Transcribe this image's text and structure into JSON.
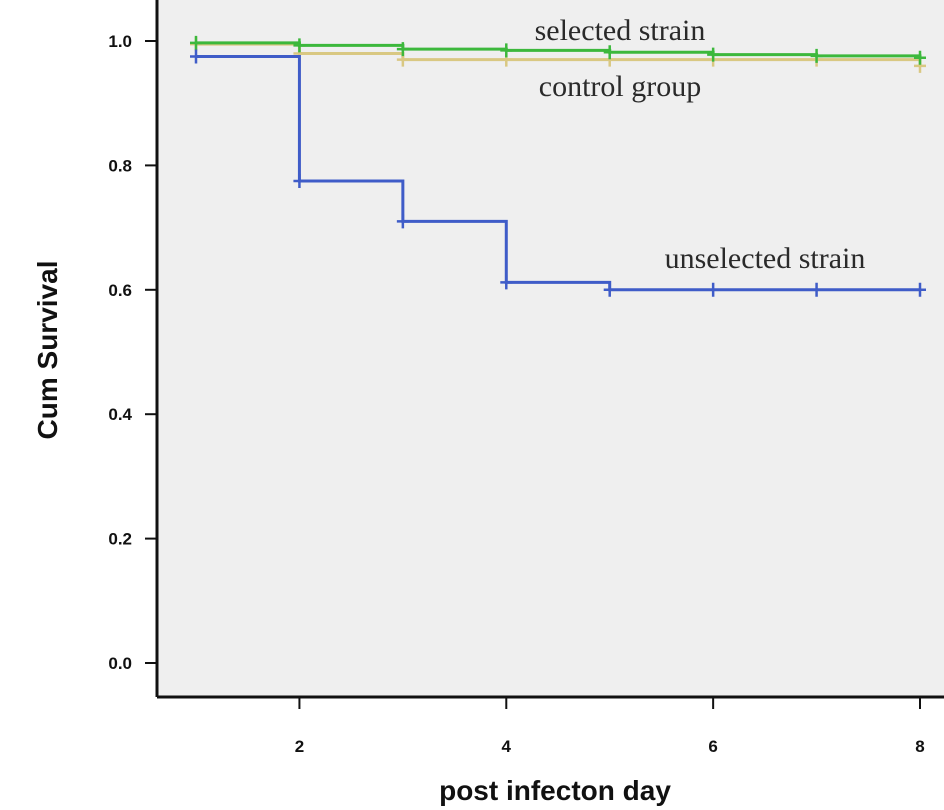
{
  "chart_data": {
    "type": "line",
    "subtype": "step",
    "title": "",
    "xlabel": "post infecton  day",
    "ylabel": "Cum Survival",
    "xlim": [
      1,
      8
    ],
    "ylim": [
      0,
      1.0
    ],
    "x_ticks": [
      2,
      4,
      6,
      8
    ],
    "x_tick_labels": [
      "2",
      "4",
      "6",
      "8"
    ],
    "y_ticks": [
      0.0,
      0.2,
      0.4,
      0.6,
      0.8,
      1.0
    ],
    "y_tick_labels": [
      "0.0",
      "0.2",
      "0.4",
      "0.6",
      "0.8",
      "1.0"
    ],
    "grid": false,
    "background_color": "#efefef",
    "series": [
      {
        "name": "control group",
        "color": "#d9c882",
        "x": [
          1,
          2,
          3,
          4,
          5,
          6,
          7,
          8
        ],
        "y": [
          0.995,
          0.98,
          0.97,
          0.97,
          0.97,
          0.97,
          0.97,
          0.96
        ],
        "censor_marks": true
      },
      {
        "name": "selected strain",
        "color": "#3cb83c",
        "x": [
          1,
          2,
          3,
          4,
          5,
          6,
          7,
          8
        ],
        "y": [
          0.997,
          0.993,
          0.987,
          0.985,
          0.982,
          0.978,
          0.976,
          0.973
        ],
        "censor_marks": true
      },
      {
        "name": "unselected strain",
        "color": "#3f5cc8",
        "x": [
          1,
          2,
          3,
          4,
          5,
          6,
          7,
          8
        ],
        "y": [
          0.975,
          0.775,
          0.71,
          0.612,
          0.6,
          0.6,
          0.6,
          0.6
        ],
        "censor_marks": true
      }
    ],
    "annotations": [
      {
        "text": "selected strain",
        "series": "selected strain"
      },
      {
        "text": "control group",
        "series": "control group"
      },
      {
        "text": "unselected strain",
        "series": "unselected strain"
      }
    ]
  }
}
